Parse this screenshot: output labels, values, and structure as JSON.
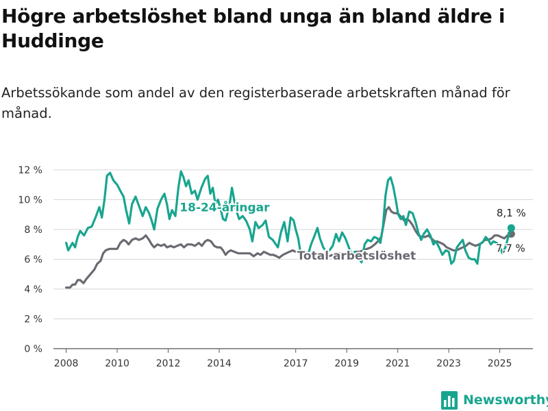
{
  "title": "Högre arbetslöshet bland unga än bland äldre i Huddinge",
  "subtitle": "Arbetssökande som andel av den registerbaserade arbetskraften månad för månad.",
  "brand": {
    "name": "Newsworthy",
    "color": "#18a58f",
    "icon": "bar-chart-logo-icon"
  },
  "chart_data": {
    "type": "line",
    "title": "Högre arbetslöshet bland unga än bland äldre i Huddinge",
    "subtitle": "Arbetssökande som andel av den registerbaserade arbetskraften månad för månad.",
    "xlabel": "",
    "ylabel": "",
    "xlim": [
      2007.5,
      2026.3
    ],
    "ylim": [
      0,
      12
    ],
    "grid": true,
    "x_ticks": [
      2008,
      2010,
      2012,
      2014,
      2017,
      2019,
      2021,
      2023,
      2025
    ],
    "x_tick_labels": [
      "2008",
      "2010",
      "2012",
      "2014",
      "2017",
      "2019",
      "2021",
      "2023",
      "2025"
    ],
    "y_ticks": [
      0,
      2,
      4,
      6,
      8,
      10,
      12
    ],
    "y_tick_labels": [
      "0 %",
      "2 %",
      "4 %",
      "6 %",
      "8 %",
      "10 %",
      "12 %"
    ],
    "series": [
      {
        "name": "18-24-åringar",
        "color": "#18a58f",
        "end_label": "8,1 %",
        "points": [
          [
            2008.0,
            7.1
          ],
          [
            2008.08,
            6.6
          ],
          [
            2008.25,
            7.1
          ],
          [
            2008.35,
            6.8
          ],
          [
            2008.45,
            7.5
          ],
          [
            2008.55,
            7.9
          ],
          [
            2008.7,
            7.6
          ],
          [
            2008.85,
            8.1
          ],
          [
            2009.0,
            8.2
          ],
          [
            2009.15,
            8.8
          ],
          [
            2009.3,
            9.5
          ],
          [
            2009.4,
            8.8
          ],
          [
            2009.5,
            10.0
          ],
          [
            2009.6,
            11.6
          ],
          [
            2009.72,
            11.8
          ],
          [
            2009.85,
            11.3
          ],
          [
            2010.0,
            11.0
          ],
          [
            2010.12,
            10.6
          ],
          [
            2010.25,
            10.2
          ],
          [
            2010.35,
            9.3
          ],
          [
            2010.47,
            8.4
          ],
          [
            2010.58,
            9.7
          ],
          [
            2010.72,
            10.2
          ],
          [
            2010.85,
            9.6
          ],
          [
            2011.0,
            8.9
          ],
          [
            2011.12,
            9.5
          ],
          [
            2011.25,
            9.1
          ],
          [
            2011.35,
            8.6
          ],
          [
            2011.45,
            8.0
          ],
          [
            2011.58,
            9.4
          ],
          [
            2011.72,
            10.0
          ],
          [
            2011.85,
            10.4
          ],
          [
            2011.95,
            9.7
          ],
          [
            2012.05,
            8.7
          ],
          [
            2012.15,
            9.3
          ],
          [
            2012.28,
            8.9
          ],
          [
            2012.4,
            10.8
          ],
          [
            2012.5,
            11.9
          ],
          [
            2012.6,
            11.5
          ],
          [
            2012.7,
            10.9
          ],
          [
            2012.8,
            11.3
          ],
          [
            2012.92,
            10.4
          ],
          [
            2013.05,
            10.6
          ],
          [
            2013.15,
            10.0
          ],
          [
            2013.3,
            10.8
          ],
          [
            2013.45,
            11.4
          ],
          [
            2013.55,
            11.6
          ],
          [
            2013.65,
            10.4
          ],
          [
            2013.75,
            10.8
          ],
          [
            2013.85,
            9.7
          ],
          [
            2013.95,
            10.0
          ],
          [
            2014.05,
            9.4
          ],
          [
            2014.15,
            8.7
          ],
          [
            2014.25,
            8.6
          ],
          [
            2014.4,
            9.6
          ],
          [
            2014.5,
            10.8
          ],
          [
            2014.65,
            9.4
          ],
          [
            2014.78,
            8.7
          ],
          [
            2014.92,
            8.9
          ],
          [
            2015.05,
            8.6
          ],
          [
            2015.2,
            8.0
          ],
          [
            2015.3,
            7.2
          ],
          [
            2015.42,
            8.5
          ],
          [
            2015.55,
            8.1
          ],
          [
            2015.7,
            8.3
          ],
          [
            2015.82,
            8.6
          ],
          [
            2015.95,
            7.5
          ],
          [
            2016.1,
            7.3
          ],
          [
            2016.3,
            6.8
          ],
          [
            2016.42,
            7.8
          ],
          [
            2016.55,
            8.5
          ],
          [
            2016.68,
            7.2
          ],
          [
            2016.8,
            8.8
          ],
          [
            2016.92,
            8.6
          ],
          [
            2017.0,
            8.0
          ],
          [
            2017.1,
            7.4
          ],
          [
            2017.2,
            6.3
          ],
          [
            2017.35,
            6.5
          ],
          [
            2017.5,
            6.4
          ],
          [
            2017.6,
            7.0
          ],
          [
            2017.72,
            7.5
          ],
          [
            2017.85,
            8.1
          ],
          [
            2017.95,
            7.4
          ],
          [
            2018.08,
            6.8
          ],
          [
            2018.2,
            6.5
          ],
          [
            2018.32,
            6.6
          ],
          [
            2018.45,
            6.9
          ],
          [
            2018.58,
            7.7
          ],
          [
            2018.7,
            7.2
          ],
          [
            2018.82,
            7.8
          ],
          [
            2018.95,
            7.4
          ],
          [
            2019.08,
            6.8
          ],
          [
            2019.2,
            6.3
          ],
          [
            2019.32,
            6.5
          ],
          [
            2019.45,
            6.1
          ],
          [
            2019.58,
            5.8
          ],
          [
            2019.7,
            7.0
          ],
          [
            2019.82,
            7.3
          ],
          [
            2019.95,
            7.2
          ],
          [
            2020.08,
            7.5
          ],
          [
            2020.2,
            7.4
          ],
          [
            2020.32,
            7.1
          ],
          [
            2020.42,
            8.2
          ],
          [
            2020.52,
            10.3
          ],
          [
            2020.62,
            11.3
          ],
          [
            2020.72,
            11.5
          ],
          [
            2020.82,
            10.9
          ],
          [
            2020.92,
            10.0
          ],
          [
            2021.02,
            9.0
          ],
          [
            2021.12,
            8.7
          ],
          [
            2021.22,
            8.9
          ],
          [
            2021.32,
            8.3
          ],
          [
            2021.45,
            9.2
          ],
          [
            2021.58,
            9.1
          ],
          [
            2021.7,
            8.5
          ],
          [
            2021.82,
            7.7
          ],
          [
            2021.92,
            7.3
          ],
          [
            2022.02,
            7.7
          ],
          [
            2022.15,
            8.0
          ],
          [
            2022.28,
            7.6
          ],
          [
            2022.4,
            7.0
          ],
          [
            2022.5,
            7.2
          ],
          [
            2022.62,
            6.8
          ],
          [
            2022.75,
            6.3
          ],
          [
            2022.88,
            6.6
          ],
          [
            2023.0,
            6.5
          ],
          [
            2023.1,
            5.7
          ],
          [
            2023.2,
            5.9
          ],
          [
            2023.32,
            6.8
          ],
          [
            2023.45,
            7.1
          ],
          [
            2023.55,
            7.3
          ],
          [
            2023.65,
            6.6
          ],
          [
            2023.78,
            6.1
          ],
          [
            2023.9,
            6.0
          ],
          [
            2024.02,
            6.0
          ],
          [
            2024.12,
            5.7
          ],
          [
            2024.22,
            7.0
          ],
          [
            2024.35,
            7.2
          ],
          [
            2024.45,
            7.5
          ],
          [
            2024.55,
            7.3
          ],
          [
            2024.65,
            7.0
          ],
          [
            2024.75,
            7.2
          ],
          [
            2024.88,
            7.1
          ],
          [
            2025.0,
            6.9
          ],
          [
            2025.1,
            6.4
          ],
          [
            2025.22,
            6.8
          ],
          [
            2025.35,
            7.6
          ],
          [
            2025.45,
            8.1
          ]
        ]
      },
      {
        "name": "Total arbetslöshet",
        "color": "#6a6a72",
        "end_label": "7,7 %",
        "points": [
          [
            2008.0,
            4.1
          ],
          [
            2008.15,
            4.1
          ],
          [
            2008.25,
            4.3
          ],
          [
            2008.35,
            4.3
          ],
          [
            2008.45,
            4.6
          ],
          [
            2008.55,
            4.6
          ],
          [
            2008.68,
            4.4
          ],
          [
            2008.8,
            4.7
          ],
          [
            2008.95,
            5.0
          ],
          [
            2009.1,
            5.3
          ],
          [
            2009.22,
            5.7
          ],
          [
            2009.35,
            5.9
          ],
          [
            2009.45,
            6.4
          ],
          [
            2009.55,
            6.6
          ],
          [
            2009.7,
            6.7
          ],
          [
            2009.85,
            6.7
          ],
          [
            2010.0,
            6.7
          ],
          [
            2010.12,
            7.1
          ],
          [
            2010.25,
            7.3
          ],
          [
            2010.35,
            7.2
          ],
          [
            2010.45,
            7.0
          ],
          [
            2010.58,
            7.3
          ],
          [
            2010.72,
            7.4
          ],
          [
            2010.85,
            7.3
          ],
          [
            2011.0,
            7.4
          ],
          [
            2011.12,
            7.6
          ],
          [
            2011.25,
            7.3
          ],
          [
            2011.35,
            7.0
          ],
          [
            2011.45,
            6.8
          ],
          [
            2011.58,
            7.0
          ],
          [
            2011.72,
            6.9
          ],
          [
            2011.85,
            7.0
          ],
          [
            2011.95,
            6.8
          ],
          [
            2012.1,
            6.9
          ],
          [
            2012.22,
            6.8
          ],
          [
            2012.35,
            6.9
          ],
          [
            2012.5,
            7.0
          ],
          [
            2012.62,
            6.8
          ],
          [
            2012.75,
            7.0
          ],
          [
            2012.9,
            7.0
          ],
          [
            2013.05,
            6.9
          ],
          [
            2013.2,
            7.1
          ],
          [
            2013.32,
            6.9
          ],
          [
            2013.45,
            7.2
          ],
          [
            2013.55,
            7.3
          ],
          [
            2013.68,
            7.2
          ],
          [
            2013.8,
            6.9
          ],
          [
            2013.92,
            6.8
          ],
          [
            2014.05,
            6.8
          ],
          [
            2014.15,
            6.6
          ],
          [
            2014.25,
            6.3
          ],
          [
            2014.35,
            6.5
          ],
          [
            2014.45,
            6.6
          ],
          [
            2014.6,
            6.5
          ],
          [
            2014.75,
            6.4
          ],
          [
            2014.9,
            6.4
          ],
          [
            2015.05,
            6.4
          ],
          [
            2015.2,
            6.4
          ],
          [
            2015.35,
            6.2
          ],
          [
            2015.5,
            6.4
          ],
          [
            2015.62,
            6.3
          ],
          [
            2015.75,
            6.5
          ],
          [
            2015.88,
            6.4
          ],
          [
            2016.0,
            6.3
          ],
          [
            2016.12,
            6.3
          ],
          [
            2016.25,
            6.2
          ],
          [
            2016.35,
            6.1
          ],
          [
            2016.5,
            6.3
          ],
          [
            2016.62,
            6.4
          ],
          [
            2016.75,
            6.5
          ],
          [
            2016.88,
            6.6
          ],
          [
            2017.0,
            6.5
          ],
          [
            2017.12,
            6.4
          ],
          [
            2017.25,
            6.3
          ],
          [
            2017.4,
            6.3
          ],
          [
            2017.55,
            6.3
          ],
          [
            2017.7,
            6.4
          ],
          [
            2017.85,
            6.4
          ],
          [
            2018.0,
            6.3
          ],
          [
            2018.15,
            6.3
          ],
          [
            2018.3,
            6.2
          ],
          [
            2018.45,
            6.3
          ],
          [
            2018.6,
            6.4
          ],
          [
            2018.75,
            6.4
          ],
          [
            2018.9,
            6.4
          ],
          [
            2019.05,
            6.4
          ],
          [
            2019.2,
            6.4
          ],
          [
            2019.35,
            6.5
          ],
          [
            2019.5,
            6.5
          ],
          [
            2019.65,
            6.6
          ],
          [
            2019.8,
            6.7
          ],
          [
            2019.95,
            6.8
          ],
          [
            2020.1,
            7.0
          ],
          [
            2020.22,
            7.2
          ],
          [
            2020.35,
            7.5
          ],
          [
            2020.45,
            8.4
          ],
          [
            2020.55,
            9.3
          ],
          [
            2020.65,
            9.5
          ],
          [
            2020.75,
            9.2
          ],
          [
            2020.85,
            9.1
          ],
          [
            2020.95,
            9.1
          ],
          [
            2021.05,
            9.0
          ],
          [
            2021.15,
            8.8
          ],
          [
            2021.25,
            8.6
          ],
          [
            2021.35,
            8.7
          ],
          [
            2021.45,
            8.6
          ],
          [
            2021.58,
            8.3
          ],
          [
            2021.7,
            7.9
          ],
          [
            2021.82,
            7.6
          ],
          [
            2021.95,
            7.5
          ],
          [
            2022.08,
            7.5
          ],
          [
            2022.2,
            7.6
          ],
          [
            2022.32,
            7.4
          ],
          [
            2022.45,
            7.2
          ],
          [
            2022.55,
            7.2
          ],
          [
            2022.68,
            7.1
          ],
          [
            2022.8,
            7.0
          ],
          [
            2022.92,
            6.8
          ],
          [
            2023.05,
            6.7
          ],
          [
            2023.18,
            6.6
          ],
          [
            2023.3,
            6.6
          ],
          [
            2023.42,
            6.7
          ],
          [
            2023.55,
            6.8
          ],
          [
            2023.68,
            6.9
          ],
          [
            2023.8,
            7.1
          ],
          [
            2023.92,
            7.0
          ],
          [
            2024.05,
            6.9
          ],
          [
            2024.18,
            7.0
          ],
          [
            2024.3,
            7.1
          ],
          [
            2024.42,
            7.3
          ],
          [
            2024.55,
            7.3
          ],
          [
            2024.68,
            7.4
          ],
          [
            2024.8,
            7.6
          ],
          [
            2024.92,
            7.6
          ],
          [
            2025.05,
            7.5
          ],
          [
            2025.18,
            7.4
          ],
          [
            2025.3,
            7.6
          ],
          [
            2025.45,
            7.7
          ]
        ]
      }
    ]
  }
}
